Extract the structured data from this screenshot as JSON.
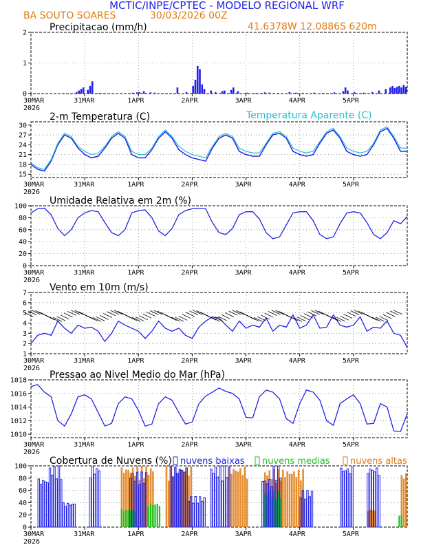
{
  "header": {
    "title": "MCTIC/INPE/CPTEC - MODELO REGIONAL WRF",
    "location": "BA SOUTO SOARES",
    "run": "30/03/2026 00Z",
    "coords": "41.6378W 12.0886S 620m"
  },
  "colors": {
    "blue": "#2020e8",
    "orange": "#e07a10",
    "cyan": "#20c0d0",
    "green": "#20c020",
    "black": "#000000"
  },
  "x_axis": {
    "labels": [
      "30MAR",
      "31MAR",
      "1APR",
      "2APR",
      "3APR",
      "4APR",
      "5APR"
    ],
    "year": "2026",
    "hours_total": 168
  },
  "chart_data": [
    {
      "id": "precip",
      "type": "bar",
      "title": "Precipitacao (mm/h)",
      "ylim": [
        0,
        2
      ],
      "yticks": [
        "0",
        "1",
        "2"
      ],
      "x_hours": [
        20,
        21,
        22,
        23,
        25,
        26,
        27,
        30,
        45,
        47,
        48,
        50,
        53,
        55,
        65,
        69,
        72,
        73,
        74,
        75,
        76,
        77,
        80,
        82,
        85,
        86,
        89,
        90,
        92,
        96,
        100,
        104,
        106,
        110,
        115,
        118,
        121,
        126,
        130,
        135,
        139,
        140,
        141,
        144,
        148,
        152,
        155,
        158,
        160,
        161,
        162,
        163,
        164,
        165,
        166,
        167
      ],
      "values": [
        0.05,
        0.1,
        0.15,
        0.2,
        0.12,
        0.25,
        0.4,
        0.02,
        0.03,
        0.04,
        0.05,
        0.08,
        0.04,
        0.03,
        0.2,
        0.05,
        0.25,
        0.45,
        0.9,
        0.8,
        0.3,
        0.15,
        0.1,
        0.05,
        0.08,
        0.1,
        0.12,
        0.2,
        0.08,
        0.03,
        0.02,
        0.04,
        0.03,
        0.02,
        0.05,
        0.03,
        0.02,
        0.03,
        0.02,
        0.04,
        0.08,
        0.2,
        0.1,
        0.05,
        0.03,
        0.05,
        0.1,
        0.15,
        0.2,
        0.25,
        0.18,
        0.22,
        0.25,
        0.2,
        0.28,
        0.22
      ]
    },
    {
      "id": "temp",
      "type": "line",
      "title": "2-m Temperatura (C)",
      "legend": "Temperatura Aparente (C)",
      "ylim": [
        14,
        31
      ],
      "yticks": [
        "15",
        "18",
        "21",
        "24",
        "27",
        "30"
      ],
      "hours": [
        0,
        3,
        6,
        9,
        12,
        15,
        18,
        21,
        24,
        27,
        30,
        33,
        36,
        39,
        42,
        45,
        48,
        51,
        54,
        57,
        60,
        63,
        66,
        69,
        72,
        75,
        78,
        81,
        84,
        87,
        90,
        93,
        96,
        99,
        102,
        105,
        108,
        111,
        114,
        117,
        120,
        123,
        126,
        129,
        132,
        135,
        138,
        141,
        144,
        147,
        150,
        153,
        156,
        159,
        162,
        165,
        168
      ],
      "series": [
        {
          "name": "2-m Temperatura",
          "values": [
            18,
            16.5,
            16,
            19,
            24,
            27,
            26,
            23,
            21,
            20,
            20.5,
            23,
            26,
            27.5,
            26,
            21,
            20,
            20,
            22.5,
            26,
            28,
            26,
            22.5,
            21,
            20,
            19.5,
            19,
            23,
            26,
            27,
            26,
            22,
            21,
            20.5,
            20.5,
            24,
            27,
            27.5,
            26,
            22,
            21,
            20.5,
            21,
            24.5,
            27.5,
            28.5,
            26,
            22,
            21,
            20.5,
            21,
            24,
            28,
            29,
            26,
            22,
            22
          ]
        },
        {
          "name": "Temperatura Aparente",
          "values": [
            18.5,
            17,
            16.5,
            19.5,
            24.5,
            27.5,
            26.5,
            23.5,
            22,
            21,
            21.5,
            23.5,
            26.5,
            28,
            26.5,
            22,
            21,
            21,
            23,
            26.5,
            28.5,
            26.5,
            23.5,
            22,
            21,
            20.5,
            20,
            23.5,
            26.5,
            27.5,
            26.5,
            23,
            22,
            21.5,
            21.5,
            24.5,
            27.5,
            28,
            26.5,
            23,
            22,
            21.5,
            22,
            25,
            28,
            29,
            26.5,
            23,
            22,
            21.5,
            22,
            24.5,
            28.5,
            29.5,
            26.5,
            23,
            23
          ]
        }
      ]
    },
    {
      "id": "rh",
      "type": "line",
      "title": "Umidade Relativa em 2m (%)",
      "ylim": [
        0,
        100
      ],
      "yticks": [
        "0",
        "20",
        "40",
        "60",
        "80",
        "100"
      ],
      "hours": [
        0,
        3,
        6,
        9,
        12,
        15,
        18,
        21,
        24,
        27,
        30,
        33,
        36,
        39,
        42,
        45,
        48,
        51,
        54,
        57,
        60,
        63,
        66,
        69,
        72,
        75,
        78,
        81,
        84,
        87,
        90,
        93,
        96,
        99,
        102,
        105,
        108,
        111,
        114,
        117,
        120,
        123,
        126,
        129,
        132,
        135,
        138,
        141,
        144,
        147,
        150,
        153,
        156,
        159,
        162,
        165,
        168
      ],
      "values": [
        88,
        95,
        96,
        85,
        62,
        50,
        60,
        80,
        88,
        92,
        90,
        72,
        55,
        50,
        60,
        88,
        92,
        93,
        80,
        58,
        50,
        62,
        85,
        92,
        95,
        96,
        95,
        72,
        55,
        52,
        62,
        85,
        90,
        90,
        78,
        55,
        45,
        48,
        68,
        88,
        90,
        90,
        75,
        52,
        45,
        48,
        70,
        88,
        90,
        88,
        72,
        52,
        45,
        55,
        75,
        70,
        82
      ]
    },
    {
      "id": "wind",
      "type": "line",
      "title": "Vento em 10m (m/s)",
      "ylim": [
        1,
        7
      ],
      "yticks": [
        "1",
        "2",
        "3",
        "4",
        "5",
        "6",
        "7"
      ],
      "hours": [
        0,
        3,
        6,
        9,
        12,
        15,
        18,
        21,
        24,
        27,
        30,
        33,
        36,
        39,
        42,
        45,
        48,
        51,
        54,
        57,
        60,
        63,
        66,
        69,
        72,
        75,
        78,
        81,
        84,
        87,
        90,
        93,
        96,
        99,
        102,
        105,
        108,
        111,
        114,
        117,
        120,
        123,
        126,
        129,
        132,
        135,
        138,
        141,
        144,
        147,
        150,
        153,
        156,
        159,
        162,
        165,
        168
      ],
      "values": [
        2,
        2.8,
        3,
        2.8,
        4.2,
        3.5,
        3,
        3.8,
        3.5,
        3.6,
        3.2,
        2.2,
        3,
        4.2,
        3.8,
        3.5,
        3.2,
        2.5,
        3.2,
        4.2,
        3.5,
        3.2,
        3.5,
        2.8,
        2.5,
        3.6,
        4.2,
        4.6,
        4.5,
        3.8,
        3.2,
        4.2,
        3.5,
        3.8,
        3.6,
        4.5,
        3.2,
        3.8,
        3.6,
        4.8,
        3.5,
        3.8,
        4.8,
        3.5,
        3.6,
        4.8,
        3.8,
        3.6,
        3.8,
        4.6,
        3.2,
        3.6,
        3.5,
        4.2,
        3,
        2.8,
        1.6
      ]
    },
    {
      "id": "pressure",
      "type": "line",
      "title": "Pressao ao Nivel Medio do Mar (hPa)",
      "ylim": [
        1009.5,
        1018
      ],
      "yticks": [
        "1010",
        "1012",
        "1014",
        "1016",
        "1018"
      ],
      "hours": [
        0,
        3,
        6,
        9,
        12,
        15,
        18,
        21,
        24,
        27,
        30,
        33,
        36,
        39,
        42,
        45,
        48,
        51,
        54,
        57,
        60,
        63,
        66,
        69,
        72,
        75,
        78,
        81,
        84,
        87,
        90,
        93,
        96,
        99,
        102,
        105,
        108,
        111,
        114,
        117,
        120,
        123,
        126,
        129,
        132,
        135,
        138,
        141,
        144,
        147,
        150,
        153,
        156,
        159,
        162,
        165,
        168
      ],
      "values": [
        1017,
        1017.3,
        1016.2,
        1015.5,
        1012,
        1011.2,
        1013,
        1015.5,
        1015.8,
        1015.2,
        1013.2,
        1011.2,
        1011.6,
        1014.5,
        1015.5,
        1015.2,
        1013.5,
        1011.2,
        1011.5,
        1014.5,
        1015.5,
        1015,
        1013.2,
        1011.5,
        1011.8,
        1014.5,
        1015.6,
        1016.2,
        1016.8,
        1016.3,
        1016,
        1015.2,
        1012.5,
        1012.4,
        1015.5,
        1016.5,
        1016.2,
        1015.2,
        1012.3,
        1011.6,
        1014.5,
        1016.5,
        1016.2,
        1015,
        1012,
        1011.3,
        1014.5,
        1015.2,
        1015.8,
        1014.5,
        1011.5,
        1011.6,
        1014.5,
        1014,
        1010.5,
        1010.4,
        1013
      ]
    },
    {
      "id": "clouds",
      "type": "bar",
      "title": "Cobertura de Nuvens (%)",
      "ylim": [
        0,
        100
      ],
      "yticks": [
        "0",
        "20",
        "40",
        "60",
        "80",
        "100"
      ],
      "legend": [
        "nuvens baixas",
        "nuvens medias",
        "nuvens altas"
      ],
      "low": [
        {
          "from": 3,
          "to": 8,
          "v": 80
        },
        {
          "from": 8,
          "to": 14,
          "v": 100
        },
        {
          "from": 14,
          "to": 20,
          "v": 40
        },
        {
          "from": 26,
          "to": 31,
          "v": 100
        },
        {
          "from": 44,
          "to": 52,
          "v": 90
        },
        {
          "from": 62,
          "to": 70,
          "v": 100
        },
        {
          "from": 70,
          "to": 78,
          "v": 50
        },
        {
          "from": 80,
          "to": 89,
          "v": 100
        },
        {
          "from": 103,
          "to": 108,
          "v": 80
        },
        {
          "from": 108,
          "to": 112,
          "v": 100
        },
        {
          "from": 120,
          "to": 126,
          "v": 60
        },
        {
          "from": 138,
          "to": 144,
          "v": 100
        },
        {
          "from": 150,
          "to": 156,
          "v": 100
        }
      ],
      "mid": [
        {
          "from": 40,
          "to": 47,
          "v": 30
        },
        {
          "from": 52,
          "to": 58,
          "v": 40
        },
        {
          "from": 104,
          "to": 112,
          "v": 60
        },
        {
          "from": 164,
          "to": 166,
          "v": 20
        }
      ],
      "high": [
        {
          "from": 40,
          "to": 55,
          "v": 100
        },
        {
          "from": 60,
          "to": 72,
          "v": 100
        },
        {
          "from": 88,
          "to": 97,
          "v": 100
        },
        {
          "from": 104,
          "to": 122,
          "v": 95
        },
        {
          "from": 150,
          "to": 154,
          "v": 30
        },
        {
          "from": 165,
          "to": 168,
          "v": 90
        }
      ]
    }
  ]
}
